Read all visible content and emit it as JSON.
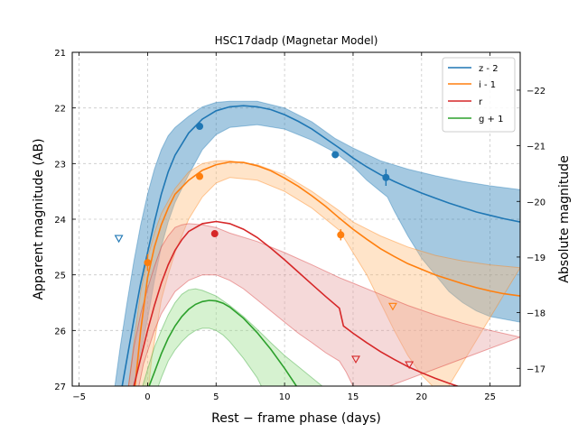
{
  "chart_data": {
    "type": "line",
    "title": "HSC17dadp (Magnetar Model)",
    "xlabel": "Rest − frame phase (days)",
    "ylabel": "Apparent magnitude (AB)",
    "ylabel_right": "Absolute magnitude",
    "xlim": [
      -5.5,
      27.2
    ],
    "ylim": [
      27,
      21
    ],
    "xticks": [
      -5,
      0,
      5,
      10,
      15,
      20,
      25
    ],
    "yticks": [
      21,
      22,
      23,
      24,
      25,
      26,
      27
    ],
    "right_ylim": [
      -16.68,
      -22.68
    ],
    "right_yticks": [
      -17,
      -18,
      -19,
      -20,
      -21,
      -22
    ],
    "right_tick_labels": [
      "−17",
      "−18",
      "−19",
      "−20",
      "−21",
      "−22"
    ],
    "grid": true,
    "legend_position": "top-right",
    "series": [
      {
        "name": "z - 2",
        "color": "#1f77b4",
        "fill": "#1f77b4",
        "model": [
          [
            -2.0,
            27.2
          ],
          [
            -1.5,
            26.5
          ],
          [
            -1.0,
            25.8
          ],
          [
            -0.5,
            25.15
          ],
          [
            0,
            24.6
          ],
          [
            0.5,
            24.05
          ],
          [
            1,
            23.55
          ],
          [
            1.5,
            23.15
          ],
          [
            2,
            22.85
          ],
          [
            3,
            22.45
          ],
          [
            4,
            22.2
          ],
          [
            5,
            22.05
          ],
          [
            6,
            21.98
          ],
          [
            7,
            21.96
          ],
          [
            8,
            21.98
          ],
          [
            9,
            22.03
          ],
          [
            10,
            22.12
          ],
          [
            11,
            22.24
          ],
          [
            12,
            22.38
          ],
          [
            13,
            22.55
          ],
          [
            14,
            22.72
          ],
          [
            15,
            22.9
          ],
          [
            16,
            23.06
          ],
          [
            17,
            23.2
          ],
          [
            18,
            23.32
          ],
          [
            19,
            23.43
          ],
          [
            20,
            23.53
          ],
          [
            21,
            23.62
          ],
          [
            22,
            23.71
          ],
          [
            23,
            23.79
          ],
          [
            24,
            23.87
          ],
          [
            25,
            23.93
          ],
          [
            26,
            23.99
          ],
          [
            27.2,
            24.05
          ]
        ],
        "band_upper": [
          [
            -2.5,
            27.2
          ],
          [
            -2.0,
            26.3
          ],
          [
            -1.5,
            25.5
          ],
          [
            -1.0,
            24.75
          ],
          [
            -0.5,
            24.1
          ],
          [
            0,
            23.55
          ],
          [
            0.5,
            23.1
          ],
          [
            1,
            22.75
          ],
          [
            1.5,
            22.5
          ],
          [
            2,
            22.35
          ],
          [
            3,
            22.15
          ],
          [
            4,
            21.98
          ],
          [
            5,
            21.9
          ],
          [
            6,
            21.88
          ],
          [
            8,
            21.88
          ],
          [
            10,
            22.0
          ],
          [
            12,
            22.25
          ],
          [
            13.7,
            22.55
          ],
          [
            15,
            22.72
          ],
          [
            17,
            22.95
          ],
          [
            19,
            23.1
          ],
          [
            21,
            23.22
          ],
          [
            23,
            23.32
          ],
          [
            25,
            23.4
          ],
          [
            27.2,
            23.47
          ]
        ],
        "band_lower": [
          [
            -1.2,
            27.2
          ],
          [
            -0.5,
            26.4
          ],
          [
            0,
            25.8
          ],
          [
            0.5,
            25.1
          ],
          [
            1,
            24.5
          ],
          [
            1.5,
            24.05
          ],
          [
            2,
            23.7
          ],
          [
            3,
            23.2
          ],
          [
            4,
            22.75
          ],
          [
            5,
            22.48
          ],
          [
            6,
            22.35
          ],
          [
            8,
            22.3
          ],
          [
            10,
            22.38
          ],
          [
            12,
            22.58
          ],
          [
            13.7,
            22.8
          ],
          [
            15,
            23.05
          ],
          [
            16,
            23.3
          ],
          [
            17,
            23.5
          ],
          [
            17.5,
            23.6
          ],
          [
            18,
            23.85
          ],
          [
            19,
            24.3
          ],
          [
            20,
            24.7
          ],
          [
            21,
            25.0
          ],
          [
            22,
            25.3
          ],
          [
            23,
            25.5
          ],
          [
            24,
            25.65
          ],
          [
            25,
            25.75
          ],
          [
            27.2,
            25.85
          ]
        ],
        "points": [
          [
            3.8,
            22.33
          ],
          [
            13.7,
            22.84
          ],
          [
            17.4,
            23.25
          ]
        ],
        "point_errors": [
          0.05,
          0.06,
          0.15
        ],
        "upper_limits": [
          [
            -2.1,
            24.35
          ]
        ]
      },
      {
        "name": "i - 1",
        "color": "#ff7f0e",
        "fill": "#ffbb78",
        "model": [
          [
            -1.0,
            27.2
          ],
          [
            -0.5,
            26.0
          ],
          [
            0,
            25.05
          ],
          [
            0.5,
            24.5
          ],
          [
            1,
            24.1
          ],
          [
            1.5,
            23.8
          ],
          [
            2,
            23.55
          ],
          [
            3,
            23.3
          ],
          [
            4,
            23.12
          ],
          [
            5,
            23.02
          ],
          [
            6,
            22.97
          ],
          [
            7,
            22.98
          ],
          [
            8,
            23.04
          ],
          [
            9,
            23.13
          ],
          [
            10,
            23.26
          ],
          [
            11,
            23.41
          ],
          [
            12,
            23.58
          ],
          [
            13,
            23.77
          ],
          [
            14,
            23.98
          ],
          [
            15,
            24.18
          ],
          [
            16,
            24.36
          ],
          [
            17,
            24.53
          ],
          [
            18,
            24.67
          ],
          [
            19,
            24.8
          ],
          [
            20,
            24.9
          ],
          [
            21,
            25.0
          ],
          [
            22,
            25.08
          ],
          [
            23,
            25.16
          ],
          [
            24,
            25.23
          ],
          [
            25,
            25.29
          ],
          [
            26,
            25.34
          ],
          [
            27.2,
            25.38
          ]
        ],
        "band_upper": [
          [
            -1.5,
            27.2
          ],
          [
            -1.0,
            26.2
          ],
          [
            -0.5,
            25.3
          ],
          [
            0,
            24.7
          ],
          [
            0.5,
            24.25
          ],
          [
            1,
            23.9
          ],
          [
            2,
            23.45
          ],
          [
            3,
            23.15
          ],
          [
            4,
            23.0
          ],
          [
            5,
            22.95
          ],
          [
            6,
            22.95
          ],
          [
            8,
            23.02
          ],
          [
            10,
            23.2
          ],
          [
            12,
            23.5
          ],
          [
            14,
            23.85
          ],
          [
            15,
            24.05
          ],
          [
            17,
            24.3
          ],
          [
            19,
            24.5
          ],
          [
            21,
            24.65
          ],
          [
            23,
            24.75
          ],
          [
            25,
            24.82
          ],
          [
            27.2,
            24.87
          ]
        ],
        "band_lower": [
          [
            0.0,
            27.2
          ],
          [
            0.3,
            26.5
          ],
          [
            1,
            25.45
          ],
          [
            1.5,
            25.0
          ],
          [
            2,
            24.6
          ],
          [
            3,
            24.0
          ],
          [
            4,
            23.6
          ],
          [
            5,
            23.35
          ],
          [
            6,
            23.25
          ],
          [
            8,
            23.3
          ],
          [
            10,
            23.5
          ],
          [
            12,
            23.8
          ],
          [
            14,
            24.2
          ],
          [
            15,
            24.6
          ],
          [
            16,
            25.0
          ],
          [
            17,
            25.5
          ],
          [
            18,
            26.0
          ],
          [
            19,
            26.45
          ],
          [
            20,
            26.8
          ],
          [
            21,
            27.05
          ],
          [
            21.5,
            27.2
          ]
        ],
        "points": [
          [
            3.8,
            23.23
          ],
          [
            14.1,
            24.28
          ],
          [
            0.0,
            24.78
          ]
        ],
        "point_errors": [
          0.05,
          0.1,
          0.15
        ],
        "upper_limits": [
          [
            17.9,
            25.57
          ]
        ]
      },
      {
        "name": "r",
        "color": "#d62728",
        "fill": "#e6a0a0",
        "model": [
          [
            -1.2,
            27.2
          ],
          [
            -0.5,
            26.5
          ],
          [
            0,
            26.0
          ],
          [
            0.5,
            25.55
          ],
          [
            1,
            25.15
          ],
          [
            1.5,
            24.82
          ],
          [
            2,
            24.56
          ],
          [
            2.5,
            24.37
          ],
          [
            3,
            24.22
          ],
          [
            4,
            24.08
          ],
          [
            5,
            24.04
          ],
          [
            6,
            24.08
          ],
          [
            7,
            24.18
          ],
          [
            8,
            24.33
          ],
          [
            9,
            24.52
          ],
          [
            10,
            24.73
          ],
          [
            11,
            24.95
          ],
          [
            12,
            25.17
          ],
          [
            13,
            25.39
          ],
          [
            14,
            25.6
          ],
          [
            14.3,
            25.92
          ],
          [
            15,
            26.05
          ],
          [
            16,
            26.22
          ],
          [
            17,
            26.38
          ],
          [
            18,
            26.52
          ],
          [
            19,
            26.65
          ],
          [
            20,
            26.76
          ],
          [
            21,
            26.86
          ],
          [
            22,
            26.95
          ],
          [
            23,
            27.03
          ],
          [
            24,
            27.1
          ],
          [
            24.5,
            27.2
          ]
        ],
        "band_upper": [
          [
            -1.5,
            27.2
          ],
          [
            -1.0,
            26.3
          ],
          [
            -0.5,
            25.7
          ],
          [
            0,
            25.25
          ],
          [
            0.5,
            24.85
          ],
          [
            1,
            24.5
          ],
          [
            1.5,
            24.3
          ],
          [
            2,
            24.15
          ],
          [
            2.5,
            24.1
          ],
          [
            3,
            24.08
          ],
          [
            4,
            24.1
          ],
          [
            5,
            24.15
          ],
          [
            6,
            24.25
          ],
          [
            8,
            24.4
          ],
          [
            10,
            24.6
          ],
          [
            12,
            24.82
          ],
          [
            14,
            25.05
          ],
          [
            15,
            25.15
          ],
          [
            17,
            25.35
          ],
          [
            19,
            25.55
          ],
          [
            21,
            25.72
          ],
          [
            23,
            25.87
          ],
          [
            25,
            26.0
          ],
          [
            27.2,
            26.12
          ]
        ],
        "band_lower": [
          [
            -0.8,
            27.2
          ],
          [
            -0.3,
            26.6
          ],
          [
            0.5,
            26.0
          ],
          [
            1,
            25.7
          ],
          [
            1.5,
            25.5
          ],
          [
            2,
            25.3
          ],
          [
            3,
            25.1
          ],
          [
            4,
            25.0
          ],
          [
            5,
            25.0
          ],
          [
            6,
            25.1
          ],
          [
            7,
            25.25
          ],
          [
            8,
            25.45
          ],
          [
            9,
            25.65
          ],
          [
            10,
            25.85
          ],
          [
            11,
            26.05
          ],
          [
            12,
            26.22
          ],
          [
            13,
            26.4
          ],
          [
            14,
            26.55
          ],
          [
            14.5,
            26.75
          ],
          [
            15,
            27.0
          ],
          [
            15.5,
            27.2
          ]
        ],
        "points": [
          [
            4.9,
            24.26
          ]
        ],
        "point_errors": [
          0.05
        ],
        "upper_limits": [
          [
            15.2,
            26.52
          ],
          [
            19.1,
            26.62
          ]
        ]
      },
      {
        "name": "g + 1",
        "color": "#2ca02c",
        "fill": "#98df8a",
        "model": [
          [
            -0.2,
            27.2
          ],
          [
            0.5,
            26.75
          ],
          [
            1,
            26.42
          ],
          [
            1.5,
            26.14
          ],
          [
            2,
            25.92
          ],
          [
            2.5,
            25.75
          ],
          [
            3,
            25.62
          ],
          [
            3.5,
            25.53
          ],
          [
            4,
            25.48
          ],
          [
            4.5,
            25.46
          ],
          [
            5,
            25.47
          ],
          [
            5.5,
            25.51
          ],
          [
            6,
            25.58
          ],
          [
            7,
            25.78
          ],
          [
            8,
            26.04
          ],
          [
            9,
            26.34
          ],
          [
            10,
            26.68
          ],
          [
            11,
            27.05
          ],
          [
            11.4,
            27.2
          ]
        ],
        "band_upper": [
          [
            -0.6,
            27.2
          ],
          [
            0,
            26.7
          ],
          [
            0.5,
            26.3
          ],
          [
            1,
            26.0
          ],
          [
            1.5,
            25.72
          ],
          [
            2,
            25.5
          ],
          [
            2.5,
            25.35
          ],
          [
            3,
            25.27
          ],
          [
            3.5,
            25.25
          ],
          [
            4,
            25.28
          ],
          [
            5,
            25.38
          ],
          [
            6,
            25.55
          ],
          [
            7,
            25.75
          ],
          [
            8,
            25.98
          ],
          [
            9,
            26.22
          ],
          [
            10,
            26.45
          ],
          [
            11,
            26.65
          ],
          [
            12,
            26.85
          ],
          [
            13,
            27.05
          ],
          [
            13.6,
            27.2
          ]
        ],
        "band_lower": [
          [
            0.5,
            27.2
          ],
          [
            1,
            26.85
          ],
          [
            1.5,
            26.55
          ],
          [
            2,
            26.35
          ],
          [
            2.5,
            26.2
          ],
          [
            3,
            26.08
          ],
          [
            3.5,
            26.0
          ],
          [
            4,
            25.96
          ],
          [
            4.5,
            25.96
          ],
          [
            5,
            26.0
          ],
          [
            5.5,
            26.08
          ],
          [
            6,
            26.2
          ],
          [
            7,
            26.5
          ],
          [
            8,
            26.85
          ],
          [
            8.7,
            27.2
          ]
        ],
        "points": [],
        "point_errors": [],
        "upper_limits": []
      }
    ]
  }
}
